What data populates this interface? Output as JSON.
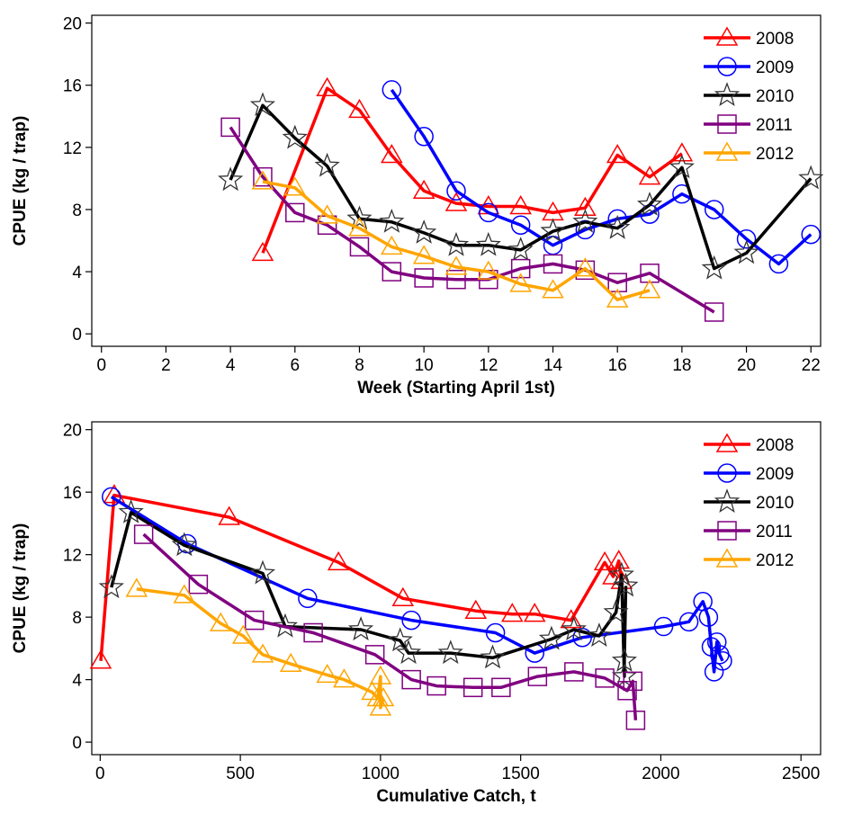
{
  "chart_data": [
    {
      "type": "line",
      "xlabel": "Week (Starting April 1st)",
      "ylabel": "CPUE (kg / trap)",
      "xlim": [
        -0.3,
        22.3
      ],
      "ylim": [
        -0.8,
        20.5
      ],
      "xticks": [
        0,
        2,
        4,
        6,
        8,
        10,
        12,
        14,
        16,
        18,
        20,
        22
      ],
      "yticks": [
        0,
        4,
        8,
        12,
        16,
        20
      ],
      "legend_position": "top-right",
      "series": [
        {
          "name": "2008",
          "color": "#ff0000",
          "marker": "triangle",
          "x": [
            5,
            7,
            8,
            9,
            10,
            11,
            12,
            13,
            14,
            15,
            16,
            17,
            18
          ],
          "y": [
            5.2,
            15.8,
            14.4,
            11.5,
            9.2,
            8.4,
            8.2,
            8.2,
            7.8,
            8.1,
            11.5,
            10.1,
            11.6
          ]
        },
        {
          "name": "2009",
          "color": "#0000ff",
          "marker": "circle",
          "x": [
            9,
            10,
            11,
            12,
            13,
            14,
            15,
            16,
            17,
            18,
            19,
            20,
            21,
            22
          ],
          "y": [
            15.7,
            12.7,
            9.2,
            7.8,
            7.0,
            5.7,
            6.7,
            7.4,
            7.7,
            9.0,
            8.0,
            6.1,
            4.5,
            6.4
          ]
        },
        {
          "name": "2010",
          "color": "#000000",
          "marker": "star",
          "x": [
            4,
            5,
            6,
            7,
            8,
            9,
            10,
            11,
            12,
            13,
            14,
            15,
            16,
            17,
            18,
            19,
            20,
            22
          ],
          "y": [
            9.9,
            14.7,
            12.6,
            10.8,
            7.4,
            7.2,
            6.5,
            5.7,
            5.7,
            5.4,
            6.6,
            7.2,
            6.8,
            8.3,
            10.7,
            4.2,
            5.2,
            10.0
          ]
        },
        {
          "name": "2011",
          "color": "#800080",
          "marker": "square",
          "x": [
            4,
            5,
            6,
            7,
            8,
            9,
            10,
            11,
            12,
            13,
            14,
            15,
            16,
            17,
            19
          ],
          "y": [
            13.3,
            10.1,
            7.8,
            7.0,
            5.6,
            4.0,
            3.6,
            3.5,
            3.5,
            4.2,
            4.5,
            4.1,
            3.3,
            3.9,
            1.4
          ]
        },
        {
          "name": "2012",
          "color": "#ffa500",
          "marker": "triangle",
          "x": [
            5,
            6,
            7,
            8,
            9,
            10,
            11,
            12,
            13,
            14,
            15,
            16,
            17
          ],
          "y": [
            9.8,
            9.4,
            7.6,
            6.8,
            5.6,
            5.0,
            4.3,
            4.0,
            3.2,
            2.8,
            4.2,
            2.2,
            2.8
          ]
        }
      ]
    },
    {
      "type": "line",
      "xlabel": "Cumulative Catch, t",
      "ylabel": "CPUE (kg / trap)",
      "xlim": [
        -30,
        2570
      ],
      "ylim": [
        -0.8,
        20.5
      ],
      "xticks": [
        0,
        500,
        1000,
        1500,
        2000,
        2500
      ],
      "yticks": [
        0,
        4,
        8,
        12,
        16,
        20
      ],
      "legend_position": "top-right",
      "series": [
        {
          "name": "2008",
          "color": "#ff0000",
          "marker": "triangle",
          "x": [
            2,
            50,
            460,
            850,
            1080,
            1340,
            1470,
            1550,
            1680,
            1800,
            1830,
            1850,
            1860
          ],
          "y": [
            5.2,
            15.8,
            14.4,
            11.5,
            9.2,
            8.4,
            8.2,
            8.2,
            7.8,
            11.5,
            10.6,
            11.6,
            10.3
          ]
        },
        {
          "name": "2009",
          "color": "#0000ff",
          "marker": "circle",
          "x": [
            40,
            310,
            740,
            1110,
            1410,
            1550,
            1720,
            2010,
            2100,
            2150,
            2170,
            2180,
            2190,
            2200,
            2210,
            2220
          ],
          "y": [
            15.7,
            12.7,
            9.2,
            7.8,
            7.0,
            5.7,
            6.7,
            7.4,
            7.7,
            9.0,
            8.0,
            6.1,
            4.5,
            6.4,
            5.6,
            5.2
          ]
        },
        {
          "name": "2010",
          "color": "#000000",
          "marker": "star",
          "x": [
            40,
            110,
            300,
            580,
            660,
            930,
            1070,
            1100,
            1250,
            1400,
            1610,
            1690,
            1780,
            1840,
            1860,
            1870,
            1870,
            1875
          ],
          "y": [
            9.9,
            14.7,
            12.6,
            10.8,
            7.4,
            7.2,
            6.5,
            5.7,
            5.7,
            5.4,
            6.6,
            7.2,
            6.8,
            8.3,
            10.7,
            4.2,
            5.2,
            10.0
          ]
        },
        {
          "name": "2011",
          "color": "#800080",
          "marker": "square",
          "x": [
            155,
            350,
            550,
            760,
            980,
            1110,
            1200,
            1330,
            1430,
            1560,
            1690,
            1800,
            1880,
            1900,
            1910
          ],
          "y": [
            13.3,
            10.1,
            7.8,
            7.0,
            5.6,
            4.0,
            3.6,
            3.5,
            3.5,
            4.2,
            4.5,
            4.1,
            3.3,
            3.9,
            1.4
          ]
        },
        {
          "name": "2012",
          "color": "#ffa500",
          "marker": "triangle",
          "x": [
            130,
            300,
            430,
            510,
            580,
            680,
            810,
            870,
            970,
            990,
            1000,
            1000,
            1010
          ],
          "y": [
            9.8,
            9.4,
            7.6,
            6.8,
            5.6,
            5.0,
            4.3,
            4.0,
            3.2,
            2.8,
            4.2,
            2.2,
            2.8
          ]
        }
      ]
    }
  ]
}
